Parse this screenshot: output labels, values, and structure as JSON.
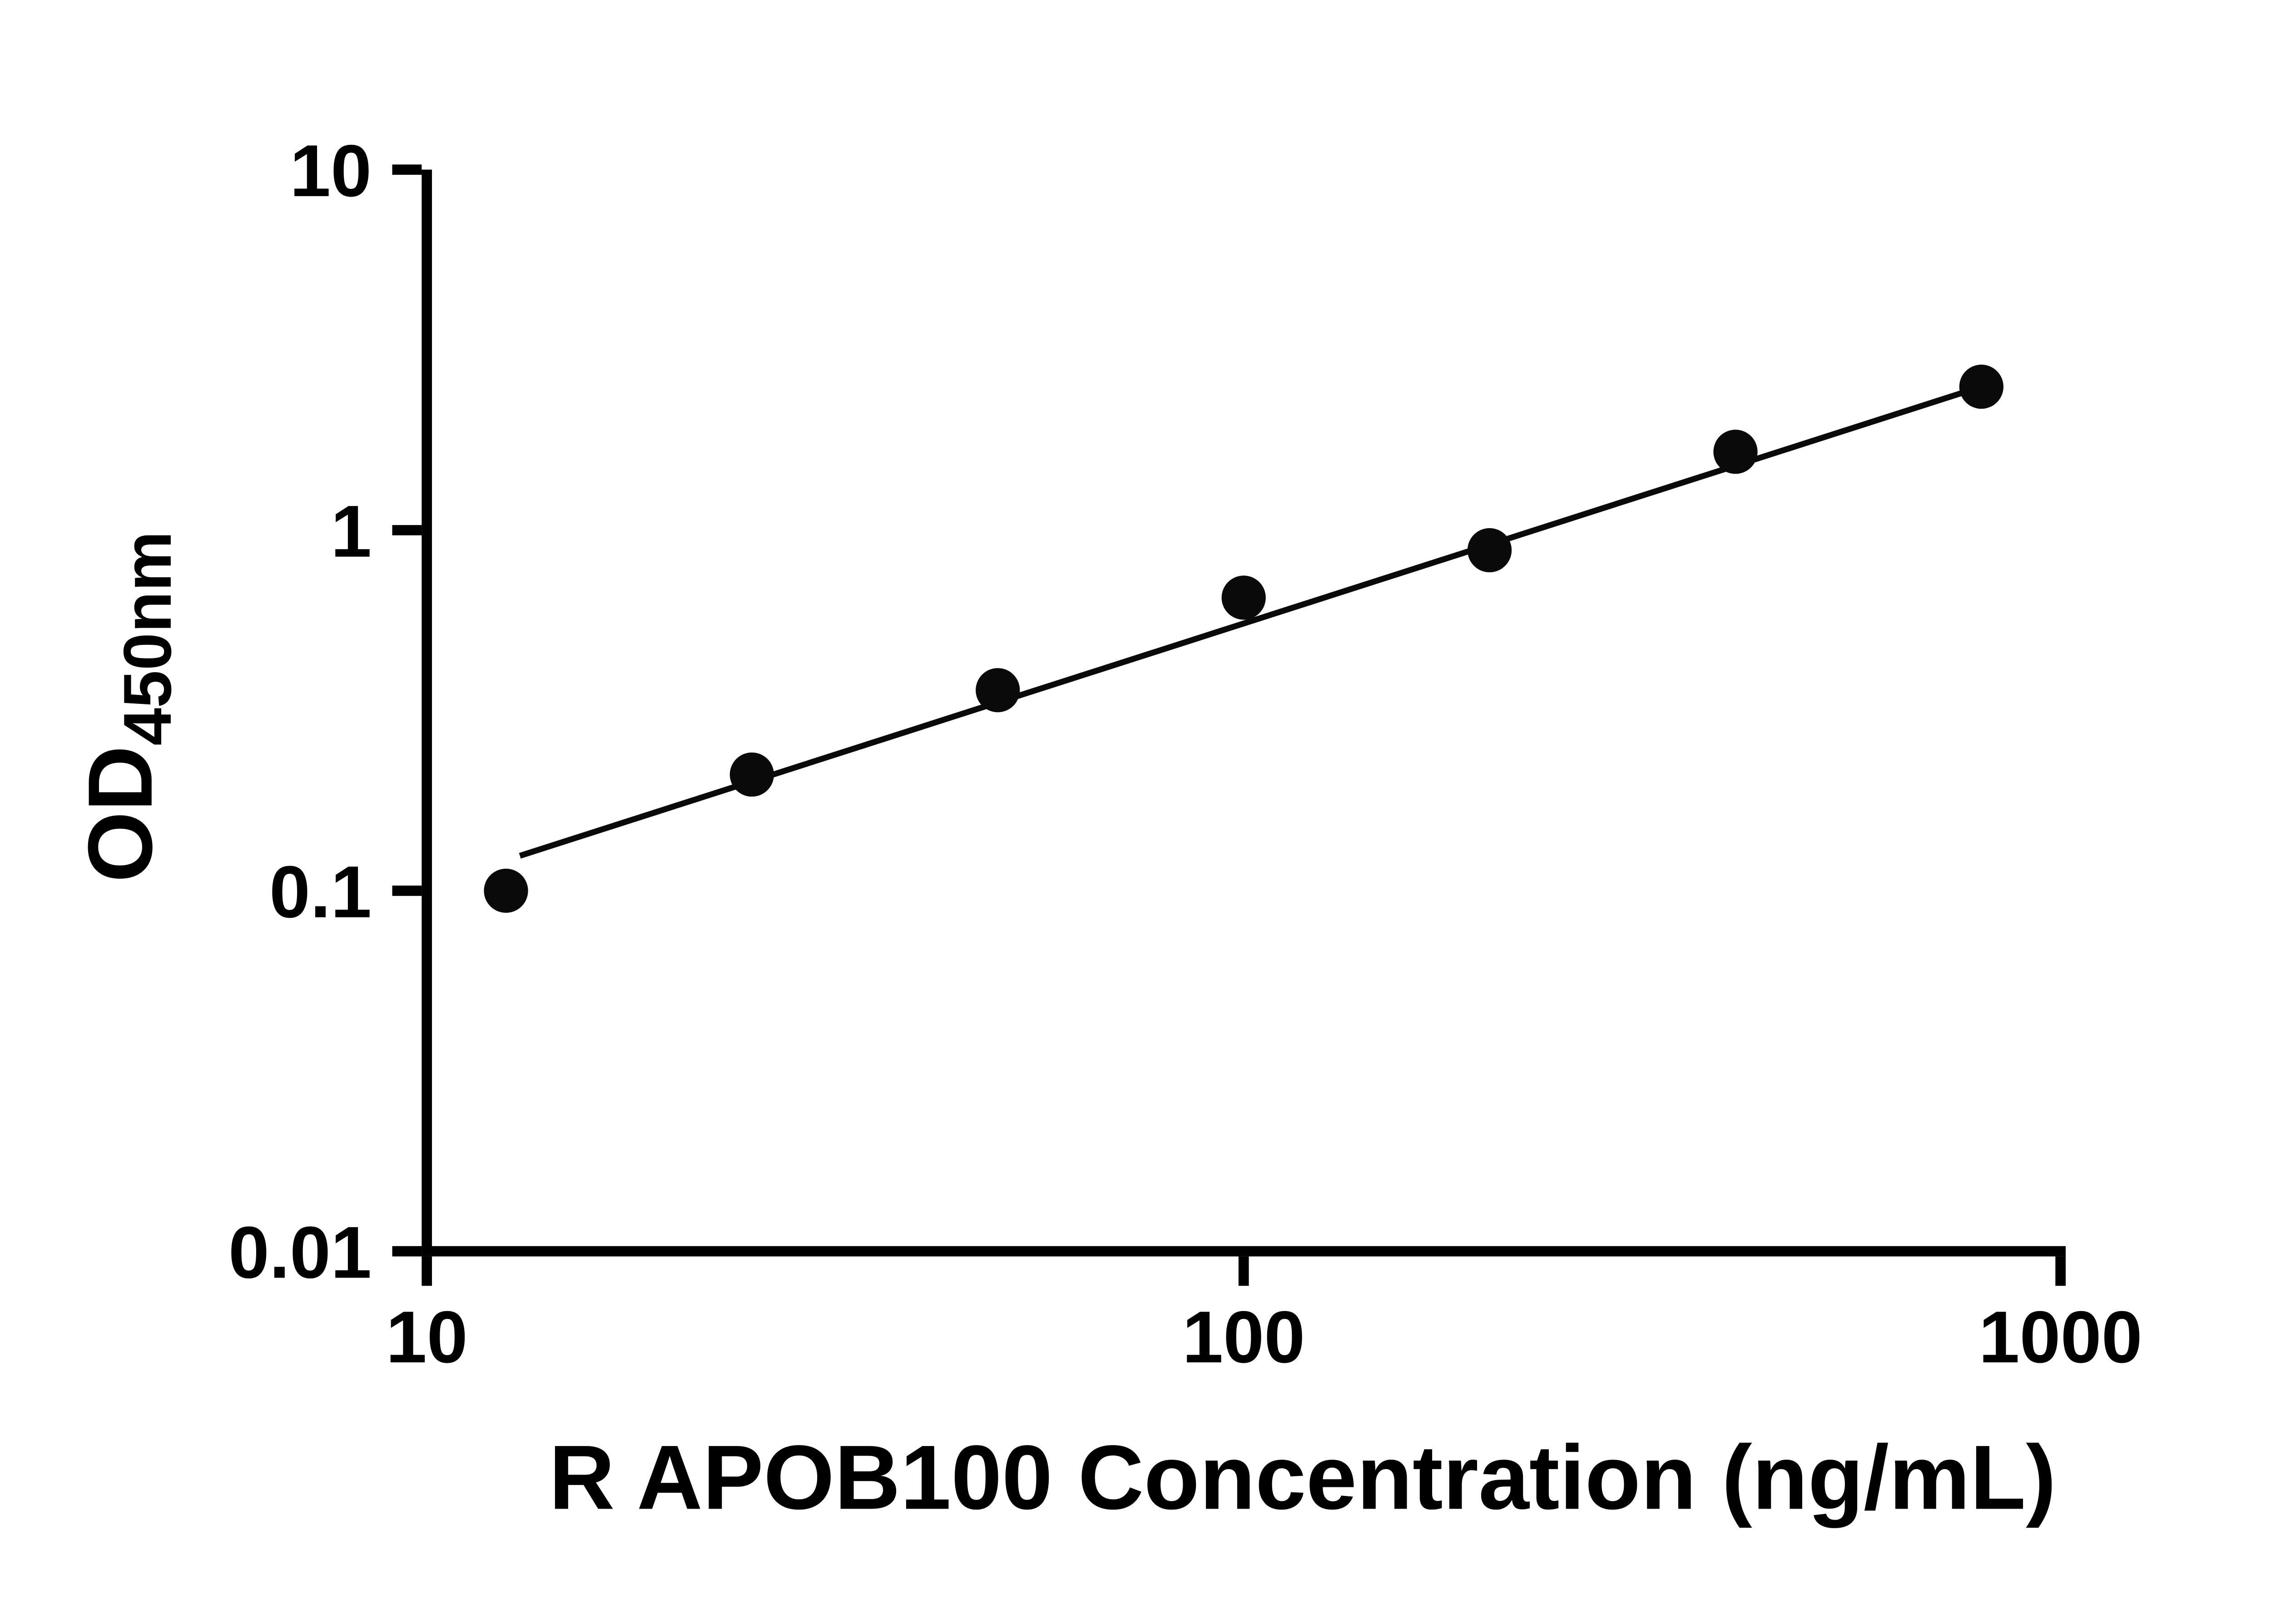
{
  "chart_data": {
    "type": "scatter",
    "title": "",
    "xlabel": "R APOB100 Concentration (ng/mL)",
    "ylabel_main": "OD",
    "ylabel_sub": "450nm",
    "xscale": "log",
    "yscale": "log",
    "xlim": [
      10,
      1000
    ],
    "ylim": [
      0.01,
      10
    ],
    "grid": "off",
    "legend": "none",
    "x_ticks": [
      {
        "value": 10,
        "label": "10"
      },
      {
        "value": 100,
        "label": "100"
      },
      {
        "value": 1000,
        "label": "1000"
      }
    ],
    "y_ticks": [
      {
        "value": 0.01,
        "label": "0.01"
      },
      {
        "value": 0.1,
        "label": "0.1"
      },
      {
        "value": 1,
        "label": "1"
      },
      {
        "value": 10,
        "label": "10"
      }
    ],
    "points": {
      "x": [
        12.5,
        25,
        50,
        100,
        200,
        400,
        800
      ],
      "y": [
        0.1,
        0.21,
        0.36,
        0.65,
        0.88,
        1.65,
        2.5
      ]
    },
    "trendline": {
      "x1": 13,
      "y1": 0.125,
      "x2": 800,
      "y2": 2.5
    },
    "colors": {
      "points": "#0a0a0a",
      "line": "#0a0a0a",
      "axis": "#000000",
      "background": "#ffffff"
    },
    "marker_radius": 15,
    "line_width": 4,
    "axis_width": 7,
    "tick_length": 20
  }
}
